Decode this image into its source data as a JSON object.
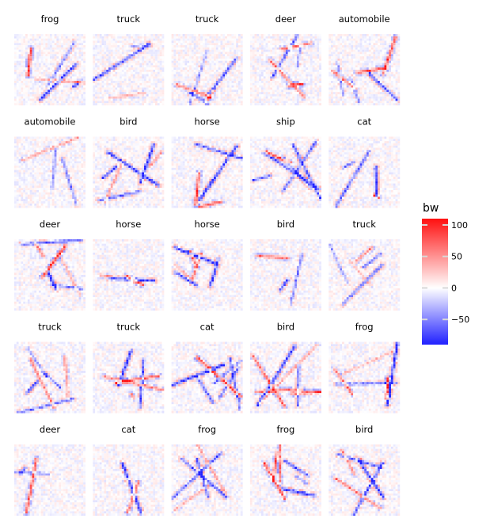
{
  "chart_data": {
    "type": "heatmap",
    "panel_titles": [
      "frog",
      "truck",
      "truck",
      "deer",
      "automobile",
      "automobile",
      "bird",
      "horse",
      "ship",
      "cat",
      "deer",
      "horse",
      "horse",
      "bird",
      "truck",
      "truck",
      "truck",
      "cat",
      "bird",
      "frog",
      "deer",
      "cat",
      "frog",
      "frog",
      "bird"
    ],
    "grid": {
      "rows": 5,
      "cols": 5
    },
    "colorbar": {
      "title": "bw",
      "range": [
        -90,
        110
      ],
      "ticks": [
        100,
        50,
        0,
        -50
      ],
      "tick_labels": [
        "100",
        "50",
        "0",
        "−50"
      ],
      "colors": {
        "low": "#2020ff",
        "mid": "#ffffff",
        "high": "#ff1010"
      }
    }
  }
}
